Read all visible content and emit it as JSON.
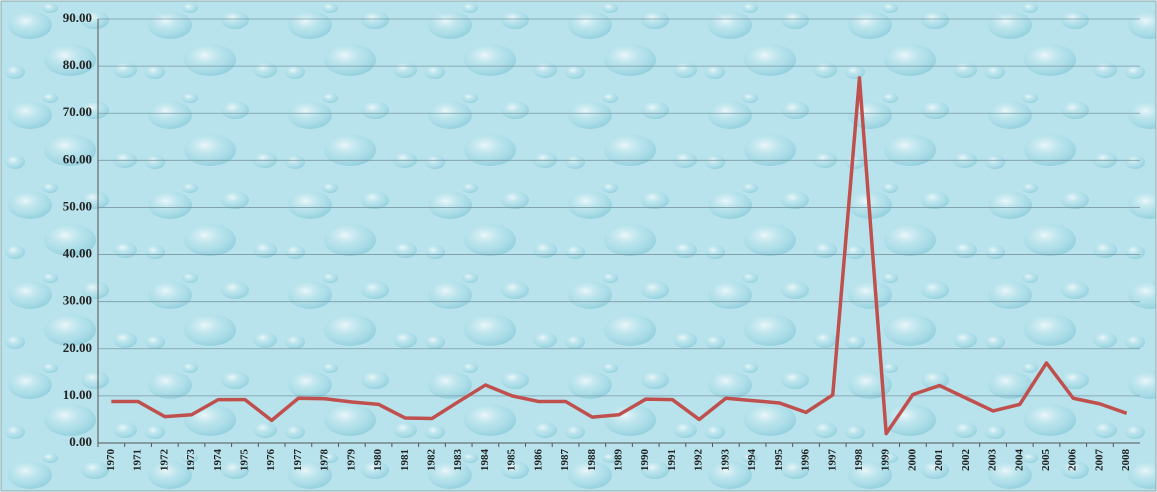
{
  "chart_data": {
    "type": "line",
    "categories": [
      "1970",
      "1971",
      "1972",
      "1973",
      "1974",
      "1975",
      "1976",
      "1977",
      "1978",
      "1979",
      "1980",
      "1981",
      "1982",
      "1983",
      "1984",
      "1985",
      "1986",
      "1987",
      "1988",
      "1989",
      "1990",
      "1991",
      "1992",
      "1993",
      "1994",
      "1995",
      "1996",
      "1997",
      "1998",
      "1999",
      "2000",
      "2001",
      "2002",
      "2003",
      "2004",
      "2005",
      "2006",
      "2007",
      "2008"
    ],
    "values": [
      8.8,
      8.8,
      5.6,
      6.0,
      9.2,
      9.2,
      4.8,
      9.5,
      9.4,
      8.7,
      8.2,
      5.3,
      5.2,
      8.8,
      12.3,
      10.0,
      8.8,
      8.8,
      5.5,
      6.0,
      9.3,
      9.2,
      5.0,
      9.5,
      9.0,
      8.5,
      6.5,
      10.2,
      77.5,
      2.0,
      10.3,
      12.2,
      9.5,
      6.8,
      8.2,
      17.0,
      9.5,
      8.3,
      6.3
    ],
    "color": "#c0504d",
    "ylim": [
      0,
      90
    ],
    "yticks": [
      {
        "value": 0,
        "label": "0.00"
      },
      {
        "value": 10,
        "label": "10.00"
      },
      {
        "value": 20,
        "label": "20.00"
      },
      {
        "value": 30,
        "label": "30.00"
      },
      {
        "value": 40,
        "label": "40.00"
      },
      {
        "value": 50,
        "label": "50.00"
      },
      {
        "value": 60,
        "label": "60.00"
      },
      {
        "value": 70,
        "label": "70.00"
      },
      {
        "value": 80,
        "label": "80.00"
      },
      {
        "value": 90,
        "label": "90.00"
      }
    ],
    "grid": true
  }
}
